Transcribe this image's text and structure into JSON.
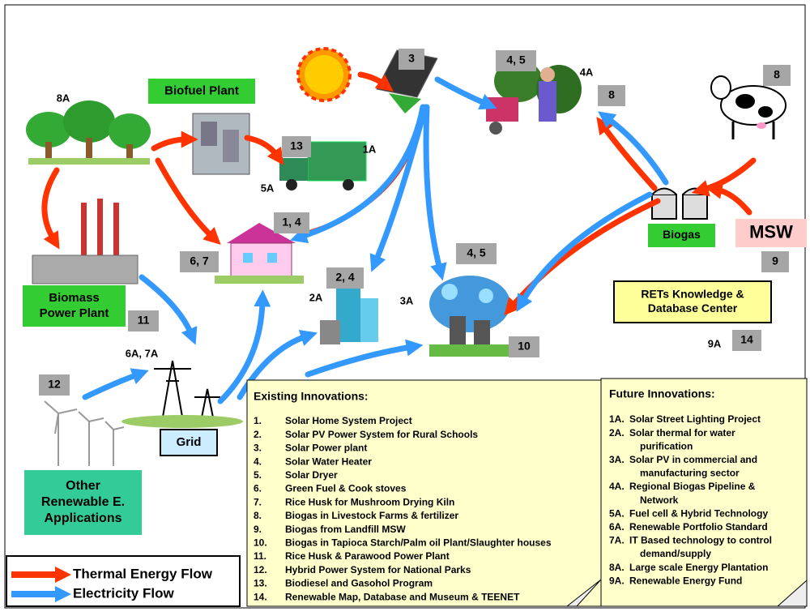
{
  "boxes": {
    "biofuel": [
      "Biofuel Plant"
    ],
    "biogas": [
      "Biogas"
    ],
    "biomass": [
      "Biomass",
      "Power Plant"
    ],
    "grid": [
      "Grid"
    ],
    "other": [
      "Other",
      "Renewable E.",
      "Applications"
    ],
    "msw": [
      "MSW"
    ],
    "rets": [
      "RETs Knowledge &",
      "Database Center"
    ]
  },
  "tags": [
    "3",
    "4, 5",
    "8",
    "8",
    "13",
    "1, 4",
    "6, 7",
    "2, 4",
    "4, 5",
    "11",
    "12",
    "10",
    "9",
    "14"
  ],
  "labels": [
    "8A",
    "4A",
    "1A",
    "5A",
    "2A",
    "3A",
    "6A, 7A",
    "9A"
  ],
  "existing": {
    "title": "Existing Innovations:",
    "items": [
      {
        "num": "1.",
        "text": "Solar Home System Project"
      },
      {
        "num": "2.",
        "text": "Solar PV Power System for Rural Schools"
      },
      {
        "num": "3.",
        "text": "Solar Power plant"
      },
      {
        "num": "4.",
        "text": "Solar Water Heater"
      },
      {
        "num": "5.",
        "text": "Solar Dryer"
      },
      {
        "num": "6.",
        "text": "Green Fuel & Cook stoves"
      },
      {
        "num": "7.",
        "text": "Rice Husk for Mushroom Drying Kiln"
      },
      {
        "num": "8.",
        "text": "Biogas in Livestock Farms & fertilizer"
      },
      {
        "num": "9.",
        "text": "Biogas from Landfill MSW"
      },
      {
        "num": "10.",
        "text": "Biogas in Tapioca Starch/Palm oil Plant/Slaughter houses"
      },
      {
        "num": "11.",
        "text": "Rice Husk & Parawood Power Plant"
      },
      {
        "num": "12.",
        "text": "Hybrid Power System for National Parks"
      },
      {
        "num": "13.",
        "text": "Biodiesel and Gasohol Program"
      },
      {
        "num": "14.",
        "text": "Renewable Map, Database and Museum & TEENET"
      }
    ]
  },
  "future": {
    "title": "Future Innovations:",
    "items": [
      {
        "num": "1A.",
        "lines": [
          "Solar Street Lighting Project"
        ]
      },
      {
        "num": "2A.",
        "lines": [
          "Solar thermal for water",
          "purification"
        ]
      },
      {
        "num": "3A.",
        "lines": [
          "Solar PV in commercial and",
          "manufacturing sector"
        ]
      },
      {
        "num": "4A.",
        "lines": [
          "Regional Biogas Pipeline &",
          "Network"
        ]
      },
      {
        "num": "5A.",
        "lines": [
          "Fuel cell & Hybrid Technology"
        ]
      },
      {
        "num": "6A.",
        "lines": [
          "Renewable Portfolio Standard"
        ]
      },
      {
        "num": "7A.",
        "lines": [
          "IT Based technology to control",
          "demand/supply"
        ]
      },
      {
        "num": "8A.",
        "lines": [
          "Large scale Energy Plantation"
        ]
      },
      {
        "num": "9A.",
        "lines": [
          "Renewable Energy Fund"
        ]
      }
    ]
  },
  "legend": [
    {
      "label": "Thermal Energy Flow",
      "color": "#ff3300"
    },
    {
      "label": "Electricity Flow",
      "color": "#3399ff"
    }
  ]
}
